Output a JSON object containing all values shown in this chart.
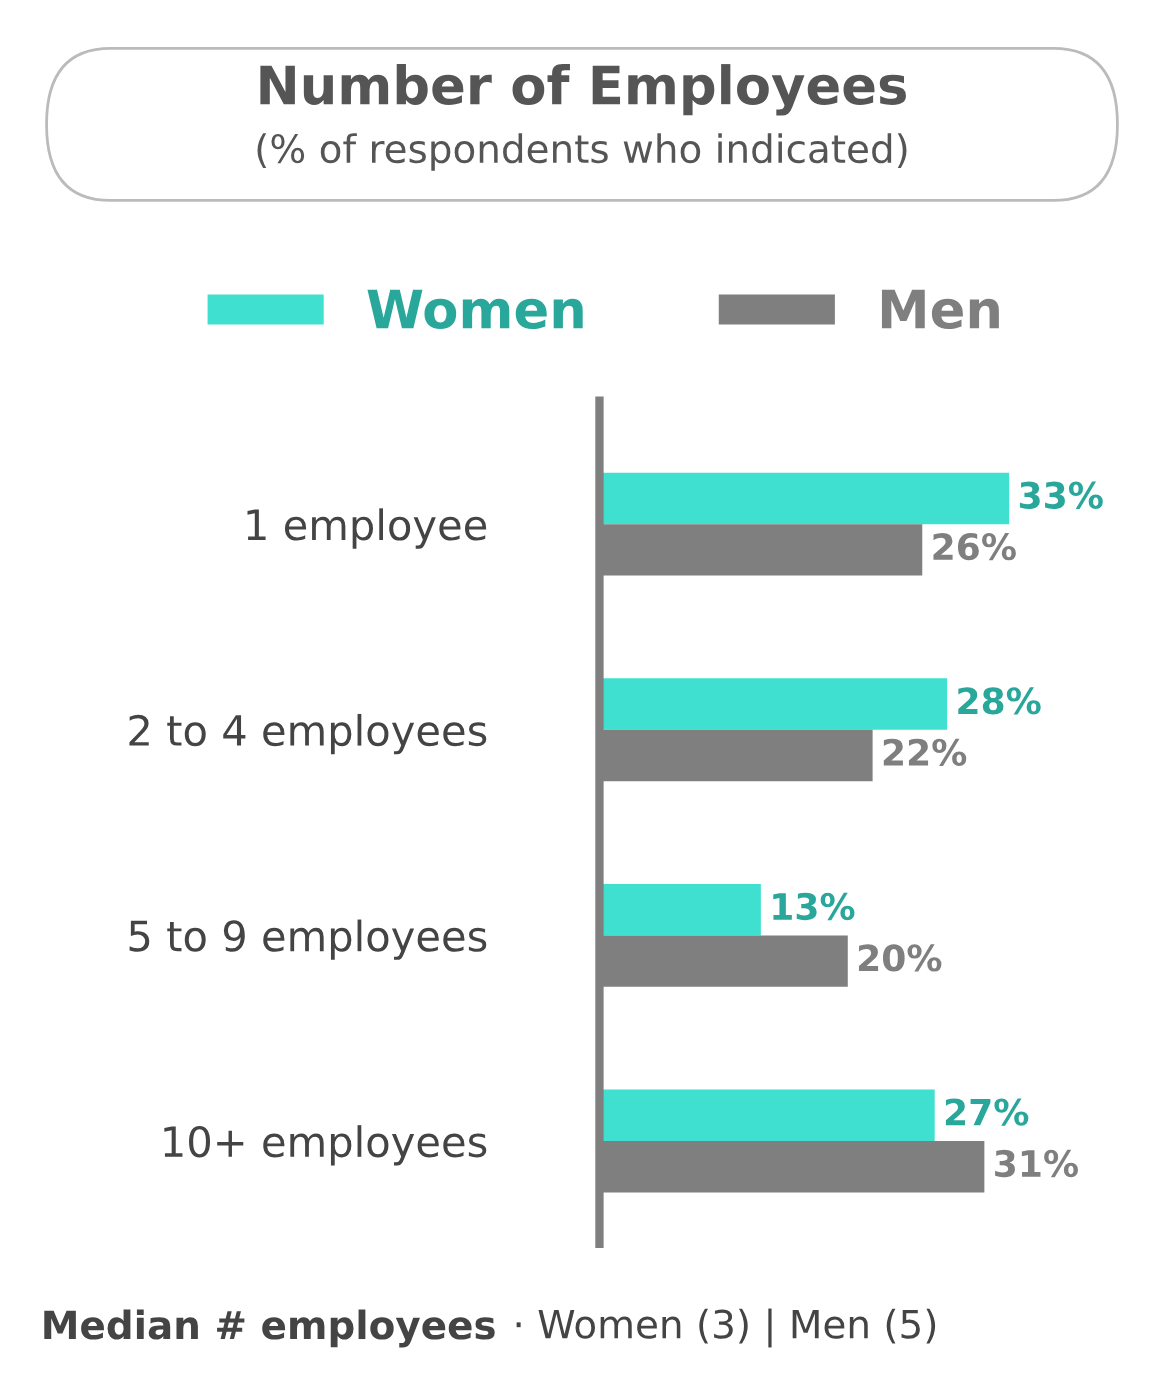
{
  "chart_data": {
    "type": "bar",
    "orientation": "horizontal",
    "title": "Number of Employees",
    "subtitle": "(% of respondents who indicated)",
    "categories": [
      "1 employee",
      "2 to 4 employees",
      "5 to 9 employees",
      "10+ employees"
    ],
    "series": [
      {
        "name": "Women",
        "color": "#40e0d0",
        "values": [
          33,
          28,
          13,
          27
        ],
        "value_labels": [
          "33%",
          "28%",
          "13%",
          "27%"
        ]
      },
      {
        "name": "Men",
        "color": "#7f7f7f",
        "values": [
          26,
          22,
          20,
          31
        ],
        "value_labels": [
          "26%",
          "22%",
          "20%",
          "31%"
        ]
      }
    ],
    "legend": "top",
    "grid": false,
    "annotations": [
      "Median # employees",
      "· Women (3) | Men (5)"
    ]
  }
}
